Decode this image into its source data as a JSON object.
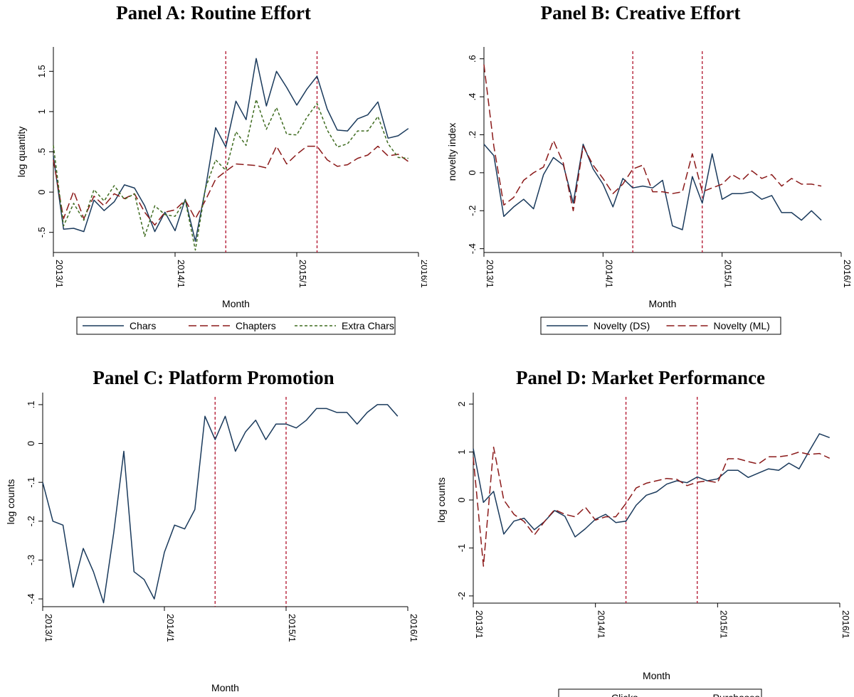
{
  "colors": {
    "solid": "#1a3a5c",
    "dash": "#8b1a1a",
    "short": "#3e6b1f",
    "vline": "#b0102a",
    "axis": "#000000"
  },
  "chart_data": [
    {
      "type": "line",
      "title": "Panel A: Routine Effort",
      "xlabel": "Month",
      "ylabel": "log quantity",
      "xticks": [
        "2013/1",
        "2014/1",
        "2015/1",
        "2016/1"
      ],
      "yticks": [
        "-.5",
        "0",
        ".5",
        "1",
        "1.5"
      ],
      "ytick_values": [
        -0.5,
        0,
        0.5,
        1,
        1.5
      ],
      "ylim": [
        -0.75,
        1.75
      ],
      "n_months": 37,
      "vlines": [
        17,
        26
      ],
      "legend_position": "bottom",
      "series": [
        {
          "name": "Chars",
          "style": "solid",
          "values": [
            0.45,
            -0.46,
            -0.45,
            -0.49,
            -0.1,
            -0.23,
            -0.12,
            0.09,
            0.05,
            -0.17,
            -0.49,
            -0.25,
            -0.48,
            -0.09,
            -0.61,
            0.05,
            0.8,
            0.56,
            1.13,
            0.9,
            1.66,
            1.07,
            1.5,
            1.3,
            1.08,
            1.28,
            1.44,
            1.03,
            0.77,
            0.76,
            0.91,
            0.96,
            1.12,
            0.67,
            0.7,
            0.79
          ]
        },
        {
          "name": "Chapters",
          "style": "dash",
          "values": [
            0.4,
            -0.33,
            0.01,
            -0.33,
            -0.05,
            -0.17,
            -0.02,
            -0.08,
            -0.02,
            -0.25,
            -0.41,
            -0.25,
            -0.22,
            -0.1,
            -0.33,
            -0.1,
            0.16,
            0.26,
            0.35,
            0.34,
            0.33,
            0.3,
            0.57,
            0.35,
            0.47,
            0.57,
            0.57,
            0.4,
            0.32,
            0.34,
            0.42,
            0.46,
            0.57,
            0.45,
            0.47,
            0.38
          ]
        },
        {
          "name": "Extra Chars",
          "style": "short",
          "values": [
            0.58,
            -0.42,
            -0.14,
            -0.35,
            0.03,
            -0.11,
            0.08,
            -0.09,
            -0.02,
            -0.55,
            -0.17,
            -0.28,
            -0.3,
            -0.1,
            -0.72,
            0.05,
            0.4,
            0.27,
            0.75,
            0.58,
            1.15,
            0.78,
            1.05,
            0.72,
            0.71,
            0.93,
            1.1,
            0.77,
            0.56,
            0.6,
            0.76,
            0.76,
            0.94,
            0.6,
            0.43,
            0.42
          ]
        }
      ]
    },
    {
      "type": "line",
      "title": "Panel B: Creative Effort",
      "xlabel": "Month",
      "ylabel": "novelty index",
      "xticks": [
        "2013/1",
        "2014/1",
        "2015/1",
        "2016/1"
      ],
      "yticks": [
        "-.4",
        "-.2",
        "0",
        ".2",
        ".4",
        ".6"
      ],
      "ytick_values": [
        -0.4,
        -0.2,
        0,
        0.2,
        0.4,
        0.6
      ],
      "ylim": [
        -0.42,
        0.64
      ],
      "n_months": 37,
      "vlines": [
        15,
        22
      ],
      "legend_position": "bottom",
      "series": [
        {
          "name": "Novelty (DS)",
          "style": "solid",
          "values": [
            0.15,
            0.09,
            -0.23,
            -0.18,
            -0.14,
            -0.19,
            -0.01,
            0.08,
            0.04,
            -0.16,
            0.15,
            0.02,
            -0.06,
            -0.18,
            -0.03,
            -0.08,
            -0.07,
            -0.08,
            -0.04,
            -0.28,
            -0.3,
            -0.02,
            -0.16,
            0.1,
            -0.14,
            -0.11,
            -0.11,
            -0.1,
            -0.14,
            -0.12,
            -0.21,
            -0.21,
            -0.25,
            -0.2,
            -0.25
          ]
        },
        {
          "name": "Novelty (ML)",
          "style": "dash",
          "values": [
            0.57,
            0.14,
            -0.17,
            -0.13,
            -0.04,
            0.0,
            0.03,
            0.17,
            0.05,
            -0.2,
            0.14,
            0.04,
            -0.03,
            -0.11,
            -0.06,
            0.02,
            0.04,
            -0.1,
            -0.1,
            -0.11,
            -0.1,
            0.1,
            -0.1,
            -0.08,
            -0.06,
            -0.01,
            -0.04,
            0.01,
            -0.03,
            -0.01,
            -0.07,
            -0.03,
            -0.06,
            -0.06,
            -0.07
          ]
        }
      ]
    },
    {
      "type": "line",
      "title": "Panel C: Platform Promotion",
      "xlabel": "Month",
      "ylabel": "log counts",
      "xticks": [
        "2013/1",
        "2014/1",
        "2015/1",
        "2016/1"
      ],
      "yticks": [
        "-.4",
        "-.3",
        "-.2",
        "-.1",
        "0",
        ".1"
      ],
      "ytick_values": [
        -0.4,
        -0.3,
        -0.2,
        -0.1,
        0,
        0.1
      ],
      "ylim": [
        -0.42,
        0.12
      ],
      "n_months": 37,
      "vlines": [
        17,
        24
      ],
      "legend_position": "none",
      "series": [
        {
          "name": "",
          "style": "solid",
          "values": [
            -0.1,
            -0.2,
            -0.21,
            -0.37,
            -0.27,
            -0.33,
            -0.41,
            -0.23,
            -0.02,
            -0.33,
            -0.35,
            -0.4,
            -0.28,
            -0.21,
            -0.22,
            -0.17,
            0.07,
            0.01,
            0.07,
            -0.02,
            0.03,
            0.06,
            0.01,
            0.05,
            0.05,
            0.04,
            0.06,
            0.09,
            0.09,
            0.08,
            0.08,
            0.05,
            0.08,
            0.1,
            0.1,
            0.07
          ]
        }
      ]
    },
    {
      "type": "line",
      "title": "Panel D: Market Performance",
      "xlabel": "Month",
      "ylabel": "log counts",
      "xticks": [
        "2013/1",
        "2014/1",
        "2015/1",
        "2016/1"
      ],
      "yticks": [
        "-2",
        "-1",
        "0",
        "1",
        "2"
      ],
      "ytick_values": [
        -2,
        -1,
        0,
        1,
        2
      ],
      "ylim": [
        -2.15,
        2.15
      ],
      "n_months": 37,
      "vlines": [
        15,
        22
      ],
      "legend_position": "bottom",
      "series": [
        {
          "name": "Clicks",
          "style": "solid",
          "values": [
            1.07,
            -0.05,
            0.18,
            -0.71,
            -0.44,
            -0.38,
            -0.62,
            -0.45,
            -0.22,
            -0.34,
            -0.77,
            -0.6,
            -0.4,
            -0.3,
            -0.47,
            -0.44,
            -0.11,
            0.1,
            0.17,
            0.33,
            0.4,
            0.36,
            0.48,
            0.4,
            0.44,
            0.62,
            0.62,
            0.47,
            0.56,
            0.65,
            0.62,
            0.77,
            0.65,
            1.02,
            1.38,
            1.3
          ]
        },
        {
          "name": "Purchases",
          "style": "dash",
          "values": [
            0.89,
            -1.38,
            1.1,
            0.0,
            -0.3,
            -0.45,
            -0.73,
            -0.45,
            -0.2,
            -0.3,
            -0.35,
            -0.15,
            -0.42,
            -0.35,
            -0.35,
            -0.07,
            0.25,
            0.35,
            0.4,
            0.45,
            0.43,
            0.3,
            0.37,
            0.4,
            0.36,
            0.86,
            0.86,
            0.8,
            0.75,
            0.9,
            0.9,
            0.93,
            1.0,
            0.95,
            0.97,
            0.87
          ]
        }
      ]
    }
  ]
}
